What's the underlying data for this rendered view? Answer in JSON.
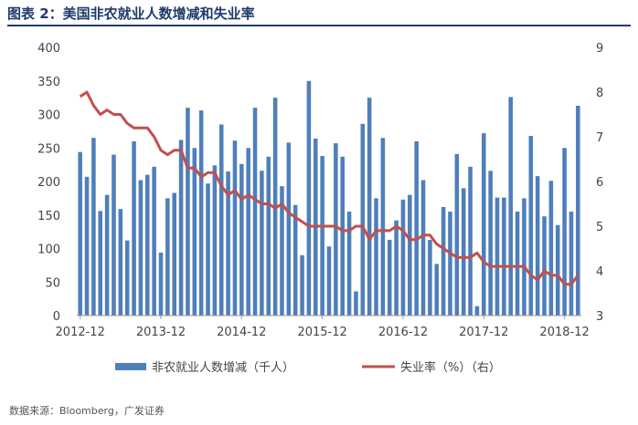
{
  "title": "图表 2：美国非农就业人数增减和失业率",
  "source": "数据来源：Bloomberg，广发证券",
  "chart_data": {
    "type": "bar",
    "x_tick_labels": [
      "2012-12",
      "2013-12",
      "2014-12",
      "2015-12",
      "2016-12",
      "2017-12",
      "2018-12"
    ],
    "left_axis": {
      "ylim": [
        0,
        400
      ],
      "ticks": [
        0,
        50,
        100,
        150,
        200,
        250,
        300,
        350,
        400
      ]
    },
    "right_axis": {
      "ylim": [
        3,
        9
      ],
      "ticks": [
        3,
        4,
        5,
        6,
        7,
        8,
        9
      ]
    },
    "grid": false,
    "legend_position": "bottom",
    "series": [
      {
        "name": "非农就业人数增减（千人）",
        "type": "bar",
        "axis": "left",
        "color": "#4f7fba",
        "values": [
          244,
          207,
          265,
          156,
          180,
          240,
          159,
          112,
          260,
          202,
          210,
          222,
          94,
          175,
          183,
          262,
          310,
          250,
          306,
          197,
          224,
          285,
          215,
          261,
          226,
          250,
          310,
          216,
          237,
          325,
          193,
          258,
          165,
          90,
          350,
          264,
          238,
          103,
          257,
          237,
          155,
          36,
          286,
          325,
          175,
          265,
          113,
          142,
          173,
          180,
          260,
          202,
          113,
          77,
          162,
          155,
          241,
          190,
          222,
          14,
          272,
          216,
          176,
          176,
          326,
          155,
          175,
          268,
          208,
          148,
          201,
          135,
          250,
          155,
          313
        ]
      },
      {
        "name": "失业率（%）（右）",
        "type": "line",
        "axis": "right",
        "color": "#c0504d",
        "values": [
          7.9,
          8.0,
          7.7,
          7.5,
          7.6,
          7.5,
          7.5,
          7.3,
          7.2,
          7.2,
          7.2,
          7.0,
          6.7,
          6.6,
          6.7,
          6.7,
          6.3,
          6.3,
          6.1,
          6.2,
          6.2,
          5.9,
          5.7,
          5.8,
          5.6,
          5.7,
          5.6,
          5.5,
          5.5,
          5.4,
          5.5,
          5.3,
          5.2,
          5.1,
          5.0,
          5.0,
          5.0,
          5.0,
          5.0,
          4.9,
          4.9,
          5.0,
          5.0,
          4.7,
          4.9,
          4.9,
          4.9,
          5.0,
          4.9,
          4.7,
          4.7,
          4.8,
          4.8,
          4.6,
          4.5,
          4.4,
          4.3,
          4.3,
          4.3,
          4.4,
          4.2,
          4.1,
          4.1,
          4.1,
          4.1,
          4.1,
          4.1,
          3.9,
          3.8,
          4.0,
          3.9,
          3.9,
          3.7,
          3.7,
          3.9
        ]
      }
    ]
  }
}
